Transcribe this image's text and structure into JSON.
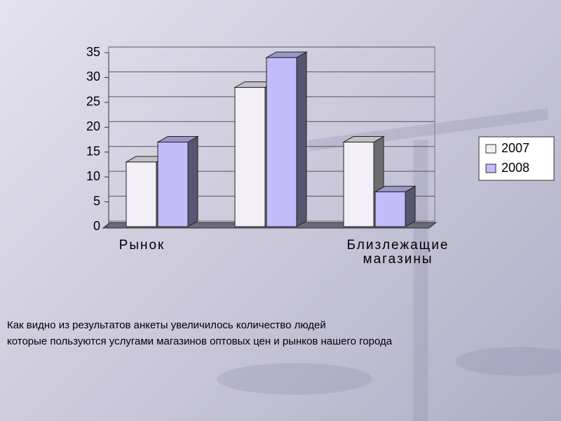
{
  "chart_data": {
    "type": "bar3d",
    "categories": [
      "Рынок",
      null,
      "Близлежащие магазины"
    ],
    "series": [
      {
        "name": "2007",
        "color": "#f2f0f6",
        "values": [
          13,
          28,
          17
        ]
      },
      {
        "name": "2008",
        "color": "#c2bcfa",
        "values": [
          17,
          34,
          7
        ]
      }
    ],
    "ylim": [
      0,
      35
    ],
    "yticks": [
      0,
      5,
      10,
      15,
      20,
      25,
      30,
      35
    ],
    "grid": true,
    "legend": "right"
  },
  "caption": [
    "Как видно из результатов анкеты увеличилось количество людей",
    "которые пользуются услугами магазинов оптовых цен и рынков нашего города"
  ]
}
